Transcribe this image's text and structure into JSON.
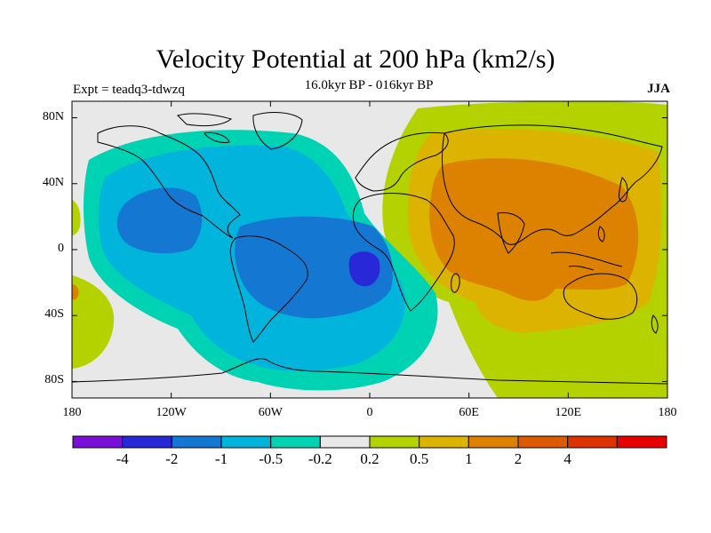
{
  "title": "Velocity Potential at 200 hPa (km2/s)",
  "subtitle": "16.0kyr BP - 016kyr BP",
  "experiment": "Expt = teadq3-tdwzq",
  "season": "JJA",
  "map": {
    "projection": "cylindrical-equidistant",
    "lon_range": [
      -180,
      180
    ],
    "lat_range": [
      -90,
      90
    ],
    "background_color": "#e8e8e8",
    "coastline_color": "#000000",
    "x_ticks": [
      {
        "lon": -180,
        "label": "180"
      },
      {
        "lon": -120,
        "label": "120W"
      },
      {
        "lon": -60,
        "label": "60W"
      },
      {
        "lon": 0,
        "label": "0"
      },
      {
        "lon": 60,
        "label": "60E"
      },
      {
        "lon": 120,
        "label": "120E"
      },
      {
        "lon": 180,
        "label": "180"
      }
    ],
    "y_ticks": [
      {
        "lat": 80,
        "label": "80N"
      },
      {
        "lat": 40,
        "label": "40N"
      },
      {
        "lat": 0,
        "label": "0"
      },
      {
        "lat": -40,
        "label": "40S"
      },
      {
        "lat": -80,
        "label": "80S"
      }
    ]
  },
  "colorbar": {
    "colors": [
      "#7a10d8",
      "#2828d8",
      "#1478d2",
      "#00b4dc",
      "#00d2b4",
      "#e8e8e8",
      "#b4d200",
      "#dcb400",
      "#dc8200",
      "#dc5a00",
      "#dc3200",
      "#e60000"
    ],
    "labels": [
      "-4",
      "-2",
      "-1",
      "-0.5",
      "-0.2",
      "0.2",
      "0.5",
      "1",
      "2",
      "4"
    ]
  }
}
